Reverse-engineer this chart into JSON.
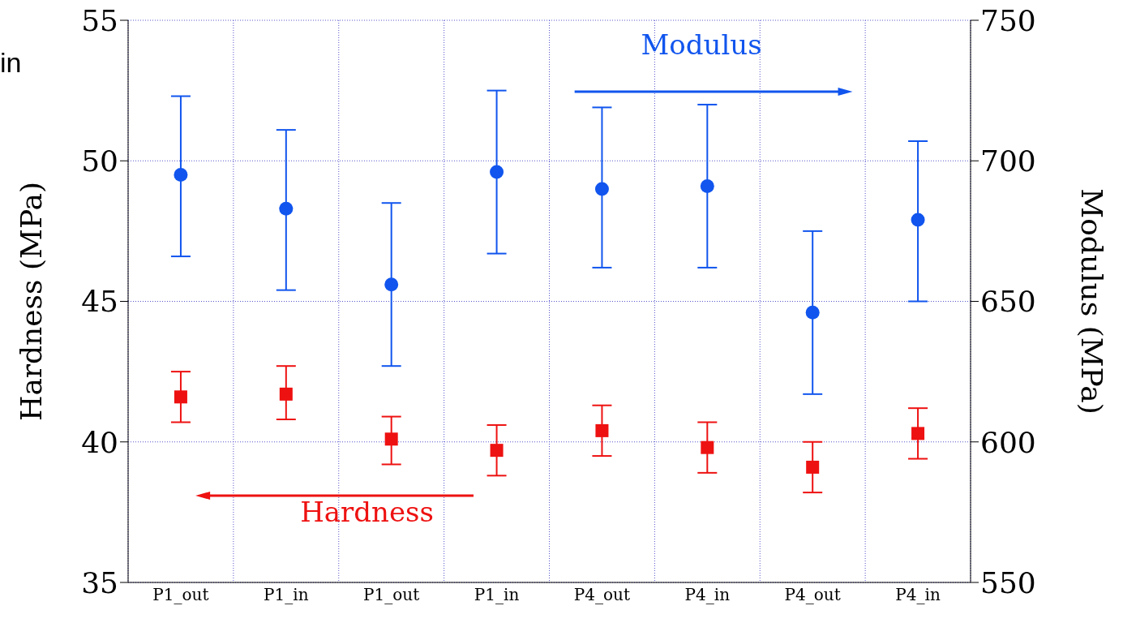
{
  "chart_data": {
    "type": "scatter",
    "categories": [
      "P1_out",
      "P1_in",
      "P1_out",
      "P1_in",
      "P4_out",
      "P4_in",
      "P4_out",
      "P4_in"
    ],
    "series": [
      {
        "name": "Hardness",
        "color": "#ee1111",
        "marker": "square",
        "values": [
          41.6,
          41.7,
          40.1,
          39.7,
          40.4,
          39.8,
          39.1,
          40.3
        ],
        "errors": [
          [
            40.7,
            42.5
          ],
          [
            40.8,
            42.7
          ],
          [
            39.2,
            40.9
          ],
          [
            38.8,
            40.6
          ],
          [
            39.5,
            41.3
          ],
          [
            38.9,
            40.7
          ],
          [
            38.2,
            40.0
          ],
          [
            39.4,
            41.2
          ]
        ]
      },
      {
        "name": "Modulus",
        "color": "#1155ee",
        "marker": "circle",
        "axis": "y2",
        "values": [
          695,
          683,
          656,
          696,
          690,
          691,
          646,
          679
        ],
        "errors": [
          [
            666,
            723
          ],
          [
            654,
            711
          ],
          [
            627,
            685
          ],
          [
            667,
            725
          ],
          [
            662,
            719
          ],
          [
            662,
            720
          ],
          [
            617,
            675
          ],
          [
            650,
            707
          ]
        ]
      }
    ],
    "ylabel": "Hardness (MPa)",
    "y2label": "Modulus (MPa)",
    "ylim": [
      35,
      55
    ],
    "yticks": [
      35,
      40,
      45,
      50,
      55
    ],
    "y2lim": [
      550,
      750
    ],
    "y2ticks": [
      550,
      600,
      650,
      700,
      750
    ],
    "grid": true,
    "legend": false,
    "annotations": [
      "in"
    ]
  }
}
